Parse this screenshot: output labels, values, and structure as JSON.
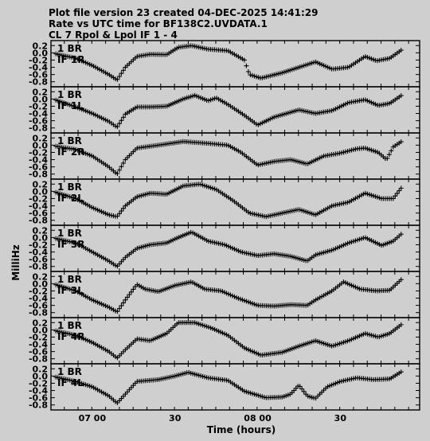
{
  "header": {
    "line1": "Plot file version 23  created 04-DEC-2025 14:41:29",
    "line2": "Rate vs UTC time for BF138C2.UVDATA.1",
    "line3": "CL 7  Rpol & Lpol  IF 1 - 4"
  },
  "chart_data": {
    "type": "scatter",
    "xlabel": "Time (hours)",
    "ylabel": "MilliHz",
    "xlim": [
      6.75,
      8.98
    ],
    "x_ticks": [
      {
        "value": 7.0,
        "label": "07 00"
      },
      {
        "value": 7.5,
        "label": "30"
      },
      {
        "value": 8.0,
        "label": "08 00"
      },
      {
        "value": 8.5,
        "label": "30"
      }
    ],
    "x_minor_tick_step_hours": 0.0833,
    "ylim": [
      -0.85,
      0.25
    ],
    "y_ticks": [
      0.2,
      0.0,
      -0.2,
      -0.4,
      -0.6,
      -0.8
    ],
    "y_tick_labels": [
      "0.2",
      "0.0",
      "-0.2",
      "-0.4",
      "-0.6",
      "-0.8"
    ],
    "marker": "+",
    "panels": [
      {
        "label1": "1 BR",
        "label2": "IF 1R",
        "curve": [
          [
            6.78,
            -0.03
          ],
          [
            6.9,
            -0.15
          ],
          [
            7.0,
            -0.35
          ],
          [
            7.1,
            -0.6
          ],
          [
            7.15,
            -0.75
          ],
          [
            7.2,
            -0.4
          ],
          [
            7.27,
            -0.1
          ],
          [
            7.35,
            -0.04
          ],
          [
            7.45,
            -0.05
          ],
          [
            7.52,
            0.15
          ],
          [
            7.6,
            0.2
          ],
          [
            7.7,
            0.1
          ],
          [
            7.82,
            0.06
          ],
          [
            7.92,
            -0.2
          ],
          [
            7.95,
            -0.6
          ],
          [
            8.02,
            -0.7
          ],
          [
            8.15,
            -0.55
          ],
          [
            8.25,
            -0.4
          ],
          [
            8.35,
            -0.25
          ],
          [
            8.45,
            -0.45
          ],
          [
            8.55,
            -0.4
          ],
          [
            8.65,
            -0.1
          ],
          [
            8.72,
            -0.22
          ],
          [
            8.8,
            -0.15
          ],
          [
            8.87,
            0.08
          ]
        ]
      },
      {
        "label1": "1 BR",
        "label2": "IF 1L",
        "curve": [
          [
            6.78,
            -0.03
          ],
          [
            6.9,
            -0.22
          ],
          [
            7.0,
            -0.4
          ],
          [
            7.1,
            -0.62
          ],
          [
            7.15,
            -0.78
          ],
          [
            7.2,
            -0.42
          ],
          [
            7.27,
            -0.22
          ],
          [
            7.35,
            -0.22
          ],
          [
            7.45,
            -0.2
          ],
          [
            7.55,
            0.0
          ],
          [
            7.62,
            0.1
          ],
          [
            7.7,
            -0.05
          ],
          [
            7.75,
            0.03
          ],
          [
            7.82,
            -0.15
          ],
          [
            7.92,
            -0.45
          ],
          [
            8.0,
            -0.72
          ],
          [
            8.1,
            -0.5
          ],
          [
            8.25,
            -0.3
          ],
          [
            8.35,
            -0.4
          ],
          [
            8.45,
            -0.32
          ],
          [
            8.55,
            -0.1
          ],
          [
            8.65,
            -0.02
          ],
          [
            8.73,
            -0.18
          ],
          [
            8.8,
            -0.12
          ],
          [
            8.87,
            0.1
          ]
        ]
      },
      {
        "label1": "1 BR",
        "label2": "IF 2R",
        "curve": [
          [
            6.78,
            -0.03
          ],
          [
            6.9,
            -0.12
          ],
          [
            7.0,
            -0.3
          ],
          [
            7.1,
            -0.6
          ],
          [
            7.15,
            -0.8
          ],
          [
            7.2,
            -0.4
          ],
          [
            7.27,
            -0.08
          ],
          [
            7.4,
            0.0
          ],
          [
            7.55,
            0.1
          ],
          [
            7.7,
            0.05
          ],
          [
            7.82,
            0.0
          ],
          [
            7.9,
            -0.2
          ],
          [
            8.0,
            -0.55
          ],
          [
            8.1,
            -0.45
          ],
          [
            8.2,
            -0.4
          ],
          [
            8.3,
            -0.52
          ],
          [
            8.4,
            -0.3
          ],
          [
            8.5,
            -0.22
          ],
          [
            8.6,
            -0.1
          ],
          [
            8.65,
            -0.08
          ],
          [
            8.73,
            -0.2
          ],
          [
            8.78,
            -0.4
          ],
          [
            8.82,
            -0.05
          ],
          [
            8.87,
            0.1
          ]
        ]
      },
      {
        "label1": "1 BR",
        "label2": "IF 2L",
        "curve": [
          [
            6.78,
            -0.03
          ],
          [
            6.9,
            -0.2
          ],
          [
            7.0,
            -0.45
          ],
          [
            7.1,
            -0.65
          ],
          [
            7.15,
            -0.7
          ],
          [
            7.2,
            -0.4
          ],
          [
            7.27,
            -0.15
          ],
          [
            7.35,
            -0.05
          ],
          [
            7.45,
            -0.08
          ],
          [
            7.55,
            0.15
          ],
          [
            7.65,
            0.2
          ],
          [
            7.75,
            0.05
          ],
          [
            7.85,
            -0.25
          ],
          [
            7.95,
            -0.6
          ],
          [
            8.05,
            -0.7
          ],
          [
            8.15,
            -0.6
          ],
          [
            8.25,
            -0.5
          ],
          [
            8.35,
            -0.65
          ],
          [
            8.45,
            -0.4
          ],
          [
            8.55,
            -0.3
          ],
          [
            8.65,
            -0.05
          ],
          [
            8.75,
            -0.2
          ],
          [
            8.82,
            -0.2
          ],
          [
            8.87,
            0.1
          ]
        ]
      },
      {
        "label1": "1 BR",
        "label2": "IF 3R",
        "curve": [
          [
            6.78,
            -0.03
          ],
          [
            6.9,
            -0.15
          ],
          [
            7.0,
            -0.4
          ],
          [
            7.1,
            -0.65
          ],
          [
            7.15,
            -0.8
          ],
          [
            7.2,
            -0.55
          ],
          [
            7.27,
            -0.3
          ],
          [
            7.35,
            -0.2
          ],
          [
            7.45,
            -0.15
          ],
          [
            7.52,
            0.0
          ],
          [
            7.6,
            0.15
          ],
          [
            7.7,
            -0.1
          ],
          [
            7.8,
            -0.2
          ],
          [
            7.9,
            -0.4
          ],
          [
            8.0,
            -0.5
          ],
          [
            8.1,
            -0.45
          ],
          [
            8.2,
            -0.52
          ],
          [
            8.3,
            -0.65
          ],
          [
            8.35,
            -0.48
          ],
          [
            8.45,
            -0.35
          ],
          [
            8.55,
            -0.15
          ],
          [
            8.65,
            0.0
          ],
          [
            8.75,
            -0.22
          ],
          [
            8.82,
            -0.1
          ],
          [
            8.87,
            0.1
          ]
        ]
      },
      {
        "label1": "1 BR",
        "label2": "IF 3L",
        "curve": [
          [
            6.78,
            -0.03
          ],
          [
            6.9,
            -0.2
          ],
          [
            7.0,
            -0.45
          ],
          [
            7.1,
            -0.65
          ],
          [
            7.15,
            -0.78
          ],
          [
            7.2,
            -0.45
          ],
          [
            7.27,
            -0.02
          ],
          [
            7.32,
            -0.15
          ],
          [
            7.4,
            -0.22
          ],
          [
            7.5,
            -0.05
          ],
          [
            7.6,
            0.05
          ],
          [
            7.68,
            -0.15
          ],
          [
            7.78,
            -0.2
          ],
          [
            7.88,
            -0.4
          ],
          [
            8.0,
            -0.6
          ],
          [
            8.1,
            -0.62
          ],
          [
            8.2,
            -0.58
          ],
          [
            8.3,
            -0.6
          ],
          [
            8.35,
            -0.45
          ],
          [
            8.45,
            -0.2
          ],
          [
            8.52,
            0.05
          ],
          [
            8.62,
            -0.15
          ],
          [
            8.72,
            -0.2
          ],
          [
            8.8,
            -0.18
          ],
          [
            8.87,
            0.12
          ]
        ]
      },
      {
        "label1": "1 BR",
        "label2": "IF 4R",
        "curve": [
          [
            6.78,
            -0.03
          ],
          [
            6.9,
            -0.15
          ],
          [
            7.0,
            -0.35
          ],
          [
            7.1,
            -0.6
          ],
          [
            7.15,
            -0.78
          ],
          [
            7.2,
            -0.55
          ],
          [
            7.27,
            -0.25
          ],
          [
            7.35,
            -0.3
          ],
          [
            7.45,
            -0.1
          ],
          [
            7.52,
            0.2
          ],
          [
            7.62,
            0.2
          ],
          [
            7.72,
            0.05
          ],
          [
            7.82,
            -0.15
          ],
          [
            7.92,
            -0.5
          ],
          [
            8.02,
            -0.7
          ],
          [
            8.15,
            -0.62
          ],
          [
            8.25,
            -0.45
          ],
          [
            8.35,
            -0.3
          ],
          [
            8.45,
            -0.45
          ],
          [
            8.55,
            -0.3
          ],
          [
            8.65,
            -0.1
          ],
          [
            8.73,
            -0.2
          ],
          [
            8.8,
            -0.1
          ],
          [
            8.87,
            0.15
          ]
        ]
      },
      {
        "label1": "1 BR",
        "label2": "IF 4L",
        "curve": [
          [
            6.78,
            -0.03
          ],
          [
            6.9,
            -0.15
          ],
          [
            7.0,
            -0.3
          ],
          [
            7.1,
            -0.55
          ],
          [
            7.15,
            -0.75
          ],
          [
            7.2,
            -0.5
          ],
          [
            7.27,
            -0.15
          ],
          [
            7.4,
            -0.1
          ],
          [
            7.5,
            0.0
          ],
          [
            7.58,
            0.1
          ],
          [
            7.7,
            -0.05
          ],
          [
            7.82,
            -0.12
          ],
          [
            7.92,
            -0.42
          ],
          [
            8.05,
            -0.6
          ],
          [
            8.15,
            -0.58
          ],
          [
            8.2,
            -0.5
          ],
          [
            8.25,
            -0.25
          ],
          [
            8.3,
            -0.55
          ],
          [
            8.35,
            -0.62
          ],
          [
            8.42,
            -0.3
          ],
          [
            8.5,
            -0.15
          ],
          [
            8.6,
            -0.05
          ],
          [
            8.7,
            -0.1
          ],
          [
            8.8,
            -0.08
          ],
          [
            8.87,
            0.12
          ]
        ]
      }
    ]
  }
}
